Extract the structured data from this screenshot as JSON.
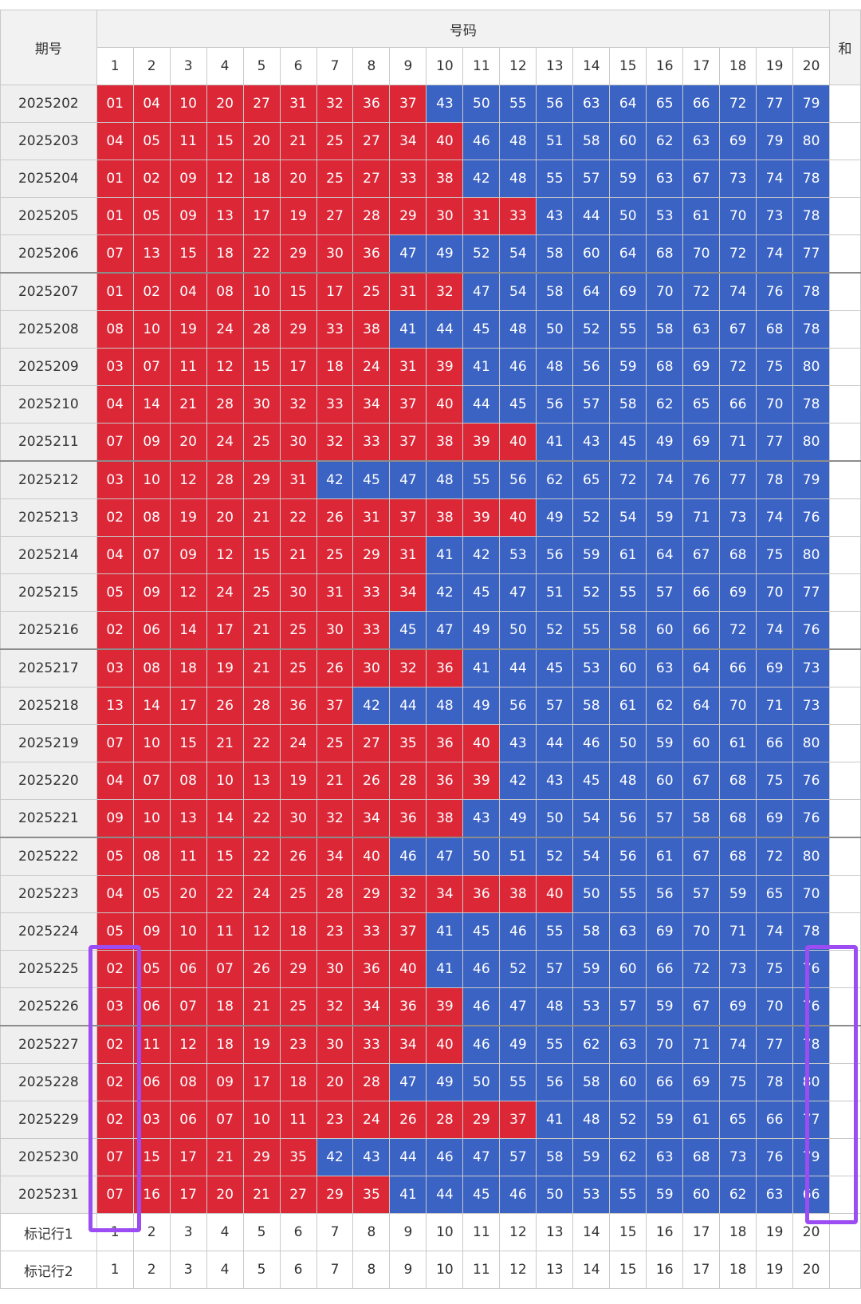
{
  "table": {
    "period_header": "期号",
    "number_header": "号码",
    "extra_header": "和",
    "columns": [
      "1",
      "2",
      "3",
      "4",
      "5",
      "6",
      "7",
      "8",
      "9",
      "10",
      "11",
      "12",
      "13",
      "14",
      "15",
      "16",
      "17",
      "18",
      "19",
      "20"
    ],
    "colors": {
      "red": "#dc2737",
      "blue": "#3b63c4",
      "highlight": "#9b4cf2"
    },
    "rows": [
      {
        "period": "2025202",
        "nums": [
          "01",
          "04",
          "10",
          "20",
          "27",
          "31",
          "32",
          "36",
          "37",
          "43",
          "50",
          "55",
          "56",
          "63",
          "64",
          "65",
          "66",
          "72",
          "77",
          "79"
        ]
      },
      {
        "period": "2025203",
        "nums": [
          "04",
          "05",
          "11",
          "15",
          "20",
          "21",
          "25",
          "27",
          "34",
          "40",
          "46",
          "48",
          "51",
          "58",
          "60",
          "62",
          "63",
          "69",
          "79",
          "80"
        ]
      },
      {
        "period": "2025204",
        "nums": [
          "01",
          "02",
          "09",
          "12",
          "18",
          "20",
          "25",
          "27",
          "33",
          "38",
          "42",
          "48",
          "55",
          "57",
          "59",
          "63",
          "67",
          "73",
          "74",
          "78"
        ]
      },
      {
        "period": "2025205",
        "nums": [
          "01",
          "05",
          "09",
          "13",
          "17",
          "19",
          "27",
          "28",
          "29",
          "30",
          "31",
          "33",
          "43",
          "44",
          "50",
          "53",
          "61",
          "70",
          "73",
          "78"
        ]
      },
      {
        "period": "2025206",
        "nums": [
          "07",
          "13",
          "15",
          "18",
          "22",
          "29",
          "30",
          "36",
          "47",
          "49",
          "52",
          "54",
          "58",
          "60",
          "64",
          "68",
          "70",
          "72",
          "74",
          "77"
        ]
      },
      {
        "period": "2025207",
        "nums": [
          "01",
          "02",
          "04",
          "08",
          "10",
          "15",
          "17",
          "25",
          "31",
          "32",
          "47",
          "54",
          "58",
          "64",
          "69",
          "70",
          "72",
          "74",
          "76",
          "78"
        ]
      },
      {
        "period": "2025208",
        "nums": [
          "08",
          "10",
          "19",
          "24",
          "28",
          "29",
          "33",
          "38",
          "41",
          "44",
          "45",
          "48",
          "50",
          "52",
          "55",
          "58",
          "63",
          "67",
          "68",
          "78"
        ]
      },
      {
        "period": "2025209",
        "nums": [
          "03",
          "07",
          "11",
          "12",
          "15",
          "17",
          "18",
          "24",
          "31",
          "39",
          "41",
          "46",
          "48",
          "56",
          "59",
          "68",
          "69",
          "72",
          "75",
          "80"
        ]
      },
      {
        "period": "2025210",
        "nums": [
          "04",
          "14",
          "21",
          "28",
          "30",
          "32",
          "33",
          "34",
          "37",
          "40",
          "44",
          "45",
          "56",
          "57",
          "58",
          "62",
          "65",
          "66",
          "70",
          "78"
        ]
      },
      {
        "period": "2025211",
        "nums": [
          "07",
          "09",
          "20",
          "24",
          "25",
          "30",
          "32",
          "33",
          "37",
          "38",
          "39",
          "40",
          "41",
          "43",
          "45",
          "49",
          "69",
          "71",
          "77",
          "80"
        ]
      },
      {
        "period": "2025212",
        "nums": [
          "03",
          "10",
          "12",
          "28",
          "29",
          "31",
          "42",
          "45",
          "47",
          "48",
          "55",
          "56",
          "62",
          "65",
          "72",
          "74",
          "76",
          "77",
          "78",
          "79"
        ]
      },
      {
        "period": "2025213",
        "nums": [
          "02",
          "08",
          "19",
          "20",
          "21",
          "22",
          "26",
          "31",
          "37",
          "38",
          "39",
          "40",
          "49",
          "52",
          "54",
          "59",
          "71",
          "73",
          "74",
          "76"
        ]
      },
      {
        "period": "2025214",
        "nums": [
          "04",
          "07",
          "09",
          "12",
          "15",
          "21",
          "25",
          "29",
          "31",
          "41",
          "42",
          "53",
          "56",
          "59",
          "61",
          "64",
          "67",
          "68",
          "75",
          "80"
        ]
      },
      {
        "period": "2025215",
        "nums": [
          "05",
          "09",
          "12",
          "24",
          "25",
          "30",
          "31",
          "33",
          "34",
          "42",
          "45",
          "47",
          "51",
          "52",
          "55",
          "57",
          "66",
          "69",
          "70",
          "77"
        ]
      },
      {
        "period": "2025216",
        "nums": [
          "02",
          "06",
          "14",
          "17",
          "21",
          "25",
          "30",
          "33",
          "45",
          "47",
          "49",
          "50",
          "52",
          "55",
          "58",
          "60",
          "66",
          "72",
          "74",
          "76"
        ]
      },
      {
        "period": "2025217",
        "nums": [
          "03",
          "08",
          "18",
          "19",
          "21",
          "25",
          "26",
          "30",
          "32",
          "36",
          "41",
          "44",
          "45",
          "53",
          "60",
          "63",
          "64",
          "66",
          "69",
          "73"
        ]
      },
      {
        "period": "2025218",
        "nums": [
          "13",
          "14",
          "17",
          "26",
          "28",
          "36",
          "37",
          "42",
          "44",
          "48",
          "49",
          "56",
          "57",
          "58",
          "61",
          "62",
          "64",
          "70",
          "71",
          "73"
        ]
      },
      {
        "period": "2025219",
        "nums": [
          "07",
          "10",
          "15",
          "21",
          "22",
          "24",
          "25",
          "27",
          "35",
          "36",
          "40",
          "43",
          "44",
          "46",
          "50",
          "59",
          "60",
          "61",
          "66",
          "80"
        ]
      },
      {
        "period": "2025220",
        "nums": [
          "04",
          "07",
          "08",
          "10",
          "13",
          "19",
          "21",
          "26",
          "28",
          "36",
          "39",
          "42",
          "43",
          "45",
          "48",
          "60",
          "67",
          "68",
          "75",
          "76"
        ]
      },
      {
        "period": "2025221",
        "nums": [
          "09",
          "10",
          "13",
          "14",
          "22",
          "30",
          "32",
          "34",
          "36",
          "38",
          "43",
          "49",
          "50",
          "54",
          "56",
          "57",
          "58",
          "68",
          "69",
          "76"
        ]
      },
      {
        "period": "2025222",
        "nums": [
          "05",
          "08",
          "11",
          "15",
          "22",
          "26",
          "34",
          "40",
          "46",
          "47",
          "50",
          "51",
          "52",
          "54",
          "56",
          "61",
          "67",
          "68",
          "72",
          "80"
        ]
      },
      {
        "period": "2025223",
        "nums": [
          "04",
          "05",
          "20",
          "22",
          "24",
          "25",
          "28",
          "29",
          "32",
          "34",
          "36",
          "38",
          "40",
          "50",
          "55",
          "56",
          "57",
          "59",
          "65",
          "70"
        ]
      },
      {
        "period": "2025224",
        "nums": [
          "05",
          "09",
          "10",
          "11",
          "12",
          "18",
          "23",
          "33",
          "37",
          "41",
          "45",
          "46",
          "55",
          "58",
          "63",
          "69",
          "70",
          "71",
          "74",
          "78"
        ]
      },
      {
        "period": "2025225",
        "nums": [
          "02",
          "05",
          "06",
          "07",
          "26",
          "29",
          "30",
          "36",
          "40",
          "41",
          "46",
          "52",
          "57",
          "59",
          "60",
          "66",
          "72",
          "73",
          "75",
          "76"
        ]
      },
      {
        "period": "2025226",
        "nums": [
          "03",
          "06",
          "07",
          "18",
          "21",
          "25",
          "32",
          "34",
          "36",
          "39",
          "46",
          "47",
          "48",
          "53",
          "57",
          "59",
          "67",
          "69",
          "70",
          "76"
        ]
      },
      {
        "period": "2025227",
        "nums": [
          "02",
          "11",
          "12",
          "18",
          "19",
          "23",
          "30",
          "33",
          "34",
          "40",
          "46",
          "49",
          "55",
          "62",
          "63",
          "70",
          "71",
          "74",
          "77",
          "78"
        ]
      },
      {
        "period": "2025228",
        "nums": [
          "02",
          "06",
          "08",
          "09",
          "17",
          "18",
          "20",
          "28",
          "47",
          "49",
          "50",
          "55",
          "56",
          "58",
          "60",
          "66",
          "69",
          "75",
          "78",
          "80"
        ]
      },
      {
        "period": "2025229",
        "nums": [
          "02",
          "03",
          "06",
          "07",
          "10",
          "11",
          "23",
          "24",
          "26",
          "28",
          "29",
          "37",
          "41",
          "48",
          "52",
          "59",
          "61",
          "65",
          "66",
          "77"
        ]
      },
      {
        "period": "2025230",
        "nums": [
          "07",
          "15",
          "17",
          "21",
          "29",
          "35",
          "42",
          "43",
          "44",
          "46",
          "47",
          "57",
          "58",
          "59",
          "62",
          "63",
          "68",
          "73",
          "76",
          "79"
        ]
      },
      {
        "period": "2025231",
        "nums": [
          "07",
          "16",
          "17",
          "20",
          "21",
          "27",
          "29",
          "35",
          "41",
          "44",
          "45",
          "46",
          "50",
          "53",
          "55",
          "59",
          "60",
          "62",
          "63",
          "66"
        ]
      }
    ],
    "marker_rows": [
      {
        "label": "标记行1",
        "values": [
          "1",
          "2",
          "3",
          "4",
          "5",
          "6",
          "7",
          "8",
          "9",
          "10",
          "11",
          "12",
          "13",
          "14",
          "15",
          "16",
          "17",
          "18",
          "19",
          "20"
        ]
      },
      {
        "label": "标记行2",
        "values": [
          "1",
          "2",
          "3",
          "4",
          "5",
          "6",
          "7",
          "8",
          "9",
          "10",
          "11",
          "12",
          "13",
          "14",
          "15",
          "16",
          "17",
          "18",
          "19",
          "20"
        ]
      }
    ]
  }
}
